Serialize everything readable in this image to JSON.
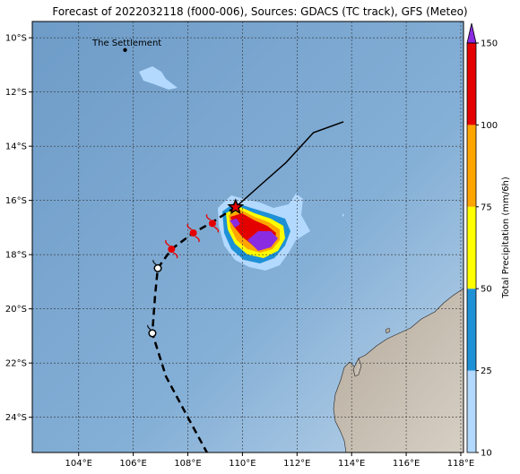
{
  "title": "Forecast of 2022032118 (f000-006), Sources: GDACS (TC track), GFS (Meteo)",
  "place_label": "The Settlement",
  "map": {
    "lon_range": [
      102.3,
      118.1
    ],
    "lat_range": [
      -25.3,
      -9.4
    ],
    "lon_ticks": [
      "104°E",
      "106°E",
      "108°E",
      "110°E",
      "112°E",
      "114°E",
      "116°E",
      "118°E"
    ],
    "lat_ticks": [
      "10°S",
      "12°S",
      "14°S",
      "16°S",
      "18°S",
      "20°S",
      "22°S",
      "24°S"
    ],
    "grid": true,
    "ocean_color": "#7aa8cf",
    "land_color": "#a89f91"
  },
  "colorbar": {
    "label": "Total Precipitation (mm/6h)",
    "tick_labels": [
      "10",
      "25",
      "50",
      "75",
      "100",
      "150"
    ],
    "colors": [
      "#b3d9ff",
      "#1e90d6",
      "#ffff00",
      "#ffa500",
      "#e50000",
      "#8a2be2"
    ]
  },
  "track": {
    "past": [
      {
        "lon": 113.7,
        "lat": -13.1
      },
      {
        "lon": 112.6,
        "lat": -13.5
      },
      {
        "lon": 111.6,
        "lat": -14.6
      },
      {
        "lon": 110.7,
        "lat": -15.4
      },
      {
        "lon": 109.75,
        "lat": -16.25
      }
    ],
    "forecast": [
      {
        "lon": 109.75,
        "lat": -16.25
      },
      {
        "lon": 108.9,
        "lat": -16.8
      },
      {
        "lon": 108.2,
        "lat": -17.2
      },
      {
        "lon": 107.4,
        "lat": -17.8
      },
      {
        "lon": 106.9,
        "lat": -18.5
      },
      {
        "lon": 106.8,
        "lat": -19.5
      },
      {
        "lon": 106.7,
        "lat": -20.9
      },
      {
        "lon": 107.2,
        "lat": -22.5
      },
      {
        "lon": 108.0,
        "lat": -24.0
      },
      {
        "lon": 108.7,
        "lat": -25.3
      }
    ],
    "current_position": {
      "lon": 109.75,
      "lat": -16.25
    },
    "cyclone_symbols": [
      {
        "lon": 108.9,
        "lat": -16.85
      },
      {
        "lon": 108.2,
        "lat": -17.2
      },
      {
        "lon": 107.4,
        "lat": -17.8
      }
    ],
    "low_symbols": [
      {
        "lon": 106.9,
        "lat": -18.5
      },
      {
        "lon": 106.7,
        "lat": -20.9
      }
    ]
  },
  "settlement": {
    "lon": 105.7,
    "lat": -10.45
  }
}
